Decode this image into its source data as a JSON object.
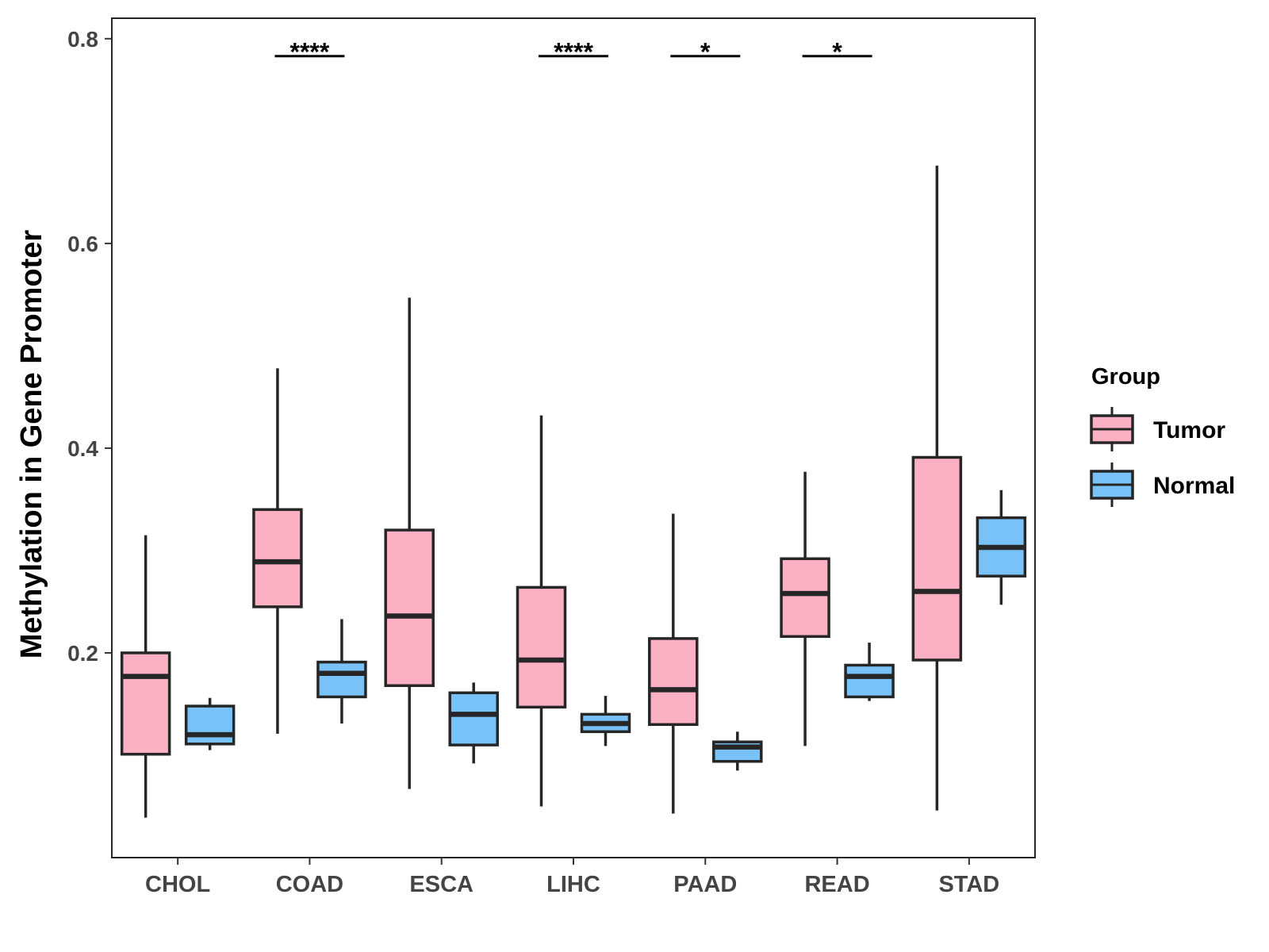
{
  "chart_data": {
    "type": "boxplot",
    "ylabel": "Methylation in Gene Promoter",
    "xlabel": "",
    "ylim": [
      0.0,
      0.82
    ],
    "yticks": [
      0.2,
      0.4,
      0.6,
      0.8
    ],
    "ytick_labels": [
      "0.2",
      "0.4",
      "0.6",
      "0.8"
    ],
    "categories": [
      "CHOL",
      "COAD",
      "ESCA",
      "LIHC",
      "PAAD",
      "READ",
      "STAD"
    ],
    "legend": {
      "title": "Group",
      "position": "right",
      "entries": [
        {
          "name": "Tumor",
          "color": "#FBB0C3"
        },
        {
          "name": "Normal",
          "color": "#79C2F7"
        }
      ]
    },
    "series": [
      {
        "name": "Tumor",
        "color": "#FBB0C3",
        "boxes": [
          {
            "category": "CHOL",
            "whisker_low": 0.039,
            "q1": 0.101,
            "median": 0.177,
            "q3": 0.2,
            "whisker_high": 0.315
          },
          {
            "category": "COAD",
            "whisker_low": 0.121,
            "q1": 0.245,
            "median": 0.289,
            "q3": 0.34,
            "whisker_high": 0.478
          },
          {
            "category": "ESCA",
            "whisker_low": 0.067,
            "q1": 0.168,
            "median": 0.236,
            "q3": 0.32,
            "whisker_high": 0.547
          },
          {
            "category": "LIHC",
            "whisker_low": 0.05,
            "q1": 0.147,
            "median": 0.193,
            "q3": 0.264,
            "whisker_high": 0.432
          },
          {
            "category": "PAAD",
            "whisker_low": 0.043,
            "q1": 0.13,
            "median": 0.164,
            "q3": 0.214,
            "whisker_high": 0.336
          },
          {
            "category": "READ",
            "whisker_low": 0.109,
            "q1": 0.216,
            "median": 0.258,
            "q3": 0.292,
            "whisker_high": 0.377
          },
          {
            "category": "STAD",
            "whisker_low": 0.046,
            "q1": 0.193,
            "median": 0.26,
            "q3": 0.391,
            "whisker_high": 0.676
          }
        ]
      },
      {
        "name": "Normal",
        "color": "#79C2F7",
        "boxes": [
          {
            "category": "CHOL",
            "whisker_low": 0.105,
            "q1": 0.111,
            "median": 0.12,
            "q3": 0.148,
            "whisker_high": 0.156
          },
          {
            "category": "COAD",
            "whisker_low": 0.131,
            "q1": 0.157,
            "median": 0.18,
            "q3": 0.191,
            "whisker_high": 0.233
          },
          {
            "category": "ESCA",
            "whisker_low": 0.092,
            "q1": 0.11,
            "median": 0.14,
            "q3": 0.161,
            "whisker_high": 0.171
          },
          {
            "category": "LIHC",
            "whisker_low": 0.109,
            "q1": 0.123,
            "median": 0.131,
            "q3": 0.14,
            "whisker_high": 0.158
          },
          {
            "category": "PAAD",
            "whisker_low": 0.085,
            "q1": 0.094,
            "median": 0.108,
            "q3": 0.113,
            "whisker_high": 0.123
          },
          {
            "category": "READ",
            "whisker_low": 0.153,
            "q1": 0.157,
            "median": 0.177,
            "q3": 0.188,
            "whisker_high": 0.21
          },
          {
            "category": "STAD",
            "whisker_low": 0.247,
            "q1": 0.275,
            "median": 0.303,
            "q3": 0.332,
            "whisker_high": 0.359
          }
        ]
      }
    ],
    "significance": [
      {
        "category": "COAD",
        "label": "****",
        "y": 0.783
      },
      {
        "category": "LIHC",
        "label": "****",
        "y": 0.783
      },
      {
        "category": "PAAD",
        "label": "*",
        "y": 0.783
      },
      {
        "category": "READ",
        "label": "*",
        "y": 0.783
      }
    ]
  }
}
